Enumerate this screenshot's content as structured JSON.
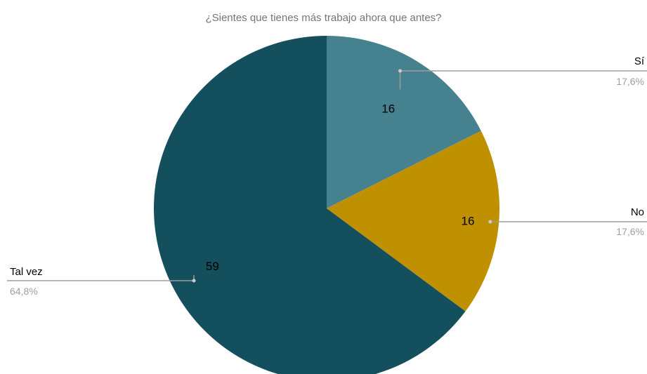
{
  "chart_data": {
    "type": "pie",
    "title": "¿Sientes que tienes más trabajo ahora que antes?",
    "legend": "none",
    "slices": [
      {
        "label": "Sí",
        "value": 16,
        "percent_label": "17,6%",
        "color": "#45818e"
      },
      {
        "label": "No",
        "value": 16,
        "percent_label": "17,6%",
        "color": "#bf9000"
      },
      {
        "label": "Tal vez",
        "value": 59,
        "percent_label": "64,8%",
        "color": "#134f5c"
      }
    ]
  },
  "colors": {
    "title_text": "#757575",
    "label_text": "#000000",
    "percent_text": "#9e9e9e",
    "leader_line": "#9e9e9e"
  }
}
